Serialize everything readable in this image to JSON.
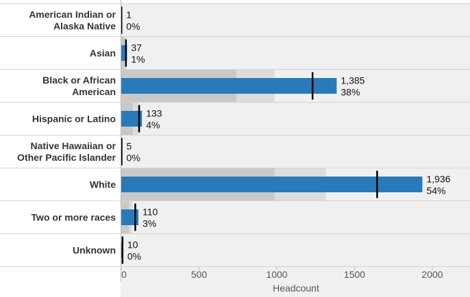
{
  "chart_data": {
    "type": "bar",
    "xlabel": "Headcount",
    "xlim": [
      0,
      2200
    ],
    "xticks": [
      "0",
      "500",
      "1000",
      "1500",
      "2000"
    ],
    "grid": false,
    "categories": [
      [
        "American Indian or",
        "Alaska Native"
      ],
      [
        "Asian"
      ],
      [
        "Black or African",
        "American"
      ],
      [
        "Hispanic or Latino"
      ],
      [
        "Native Hawaiian or",
        "Other Pacific Islander"
      ],
      [
        "White"
      ],
      [
        "Two or more races"
      ],
      [
        "Unknown"
      ]
    ],
    "series": [
      {
        "role": "headcount",
        "values": [
          1,
          37,
          1385,
          133,
          5,
          1936,
          110,
          10
        ],
        "labels": [
          "1",
          "37",
          "1,385",
          "133",
          "5",
          "1,936",
          "110",
          "10"
        ],
        "percent_labels": [
          "0%",
          "1%",
          "38%",
          "4%",
          "0%",
          "54%",
          "3%",
          "0%"
        ]
      },
      {
        "role": "target-marker",
        "values": [
          1,
          30,
          1230,
          115,
          2,
          1645,
          90,
          8
        ]
      },
      {
        "role": "band-dark",
        "values": [
          0,
          20,
          740,
          75,
          0,
          985,
          50,
          0
        ]
      },
      {
        "role": "band-light",
        "values": [
          0,
          35,
          985,
          110,
          0,
          1315,
          70,
          0
        ]
      }
    ],
    "colors": {
      "bar": "#2a7ab9",
      "marker": "#000000",
      "band_dark": "#c9c9c9",
      "band_light": "#dcdcdc",
      "row_bg": "#f0f0f0",
      "row_line": "#d4d4d4"
    }
  }
}
